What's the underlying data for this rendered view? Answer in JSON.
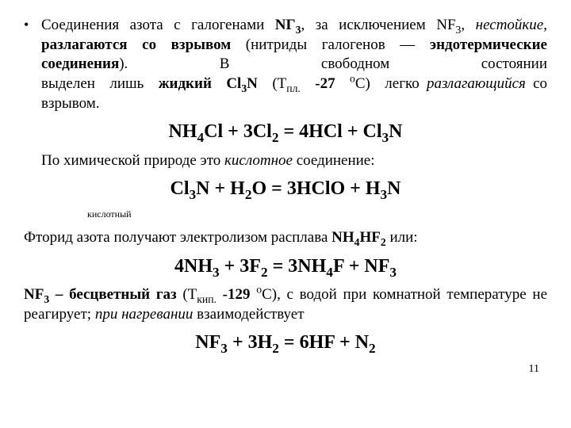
{
  "bullet": {
    "mark": "•",
    "p1_a": "Соединения азота с галогенами ",
    "p1_b": "NГ",
    "p1_b_sub": "3",
    "p1_c": ", за исключением NF",
    "p1_c_sub": "3",
    "p1_c2": ", ",
    "p1_d": "нестойкие",
    "p1_e": ", ",
    "p1_f": "разлагаются со взрывом",
    "p1_g": " (нитриды галогенов — ",
    "p1_h": "эндотермические соединения",
    "p1_i": "). В свободном состоянии выделен  лишь  ",
    "p1_j": "жидкий  Cl",
    "p1_j_sub": "3",
    "p1_j2": "N",
    "p1_k": "  (Т",
    "p1_k_sub": "пл.",
    "p1_k2": "  ",
    "p1_l": "-27",
    "p1_m": "  ",
    "p1_m_sup": "о",
    "p1_m2": "С)  легко ",
    "p1_n": "разлагающийся",
    "p1_o": " со взрывом."
  },
  "eq1": {
    "a": "NH",
    "a_sub": "4",
    "b": "Cl  +  3Cl",
    "b_sub": "2",
    "c": "  =  4HCl  +  Cl",
    "c_sub": "3",
    "d": "N"
  },
  "para2_a": "По химической природе это ",
  "para2_b": "кислотное",
  "para2_c": " соединение:",
  "eq2": {
    "a": "Cl",
    "a_sub": "3",
    "b": "N  + H",
    "b_sub": "2",
    "c": "O  =  3HClO  +  H",
    "c_sub": "3",
    "d": "N"
  },
  "note1": "кислотный",
  "para3_a": "Фторид азота получают электролизом расплава ",
  "para3_b": "NH",
  "para3_b_sub": "4",
  "para3_b2": "HF",
  "para3_b2_sub": "2",
  "para3_c": " или:",
  "eq3": {
    "a": "4NH",
    "a_sub": "3",
    "b": "  +  3F",
    "b_sub": "2",
    "c": "  =  3NH",
    "c_sub": "4",
    "d": "F  + NF",
    "d_sub": "3"
  },
  "para4_a": "NF",
  "para4_a_sub": "3",
  "para4_b": " – бесцветный газ",
  "para4_c": "  (Т",
  "para4_c_sub": "кип.",
  "para4_d": " ",
  "para4_e": "-129",
  "para4_f": " ",
  "para4_f_sup": "о",
  "para4_f2": "С), с водой при комнатной температуре не реагирует; ",
  "para4_g": "при нагревании",
  "para4_h": "  взаимодействует",
  "eq4": {
    "a": "NF",
    "a_sub": "3",
    "b": "  +  3H",
    "b_sub": "2",
    "c": "  =  6HF  +  N",
    "c_sub": "2"
  },
  "page": "11"
}
